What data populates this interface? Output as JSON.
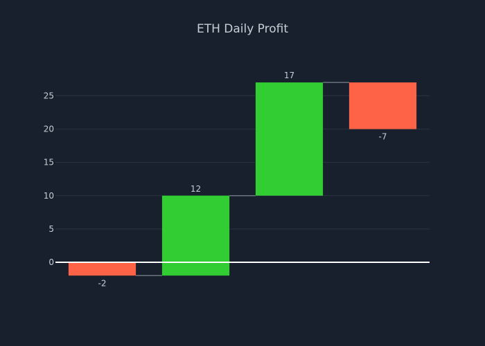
{
  "chart_data": {
    "type": "waterfall",
    "title": "ETH Daily Profit",
    "xlabel": "",
    "ylabel": "",
    "categories": [
      "",
      "",
      "",
      ""
    ],
    "values": [
      -2,
      12,
      17,
      -7
    ],
    "labels": [
      "-2",
      "12",
      "17",
      "-7"
    ],
    "ylim": [
      -5,
      30
    ],
    "yticks": [
      0,
      5,
      10,
      15,
      20,
      25
    ],
    "grid": true,
    "legend": "none",
    "colors": {
      "increase": "#32cd32",
      "decrease": "#ff6347",
      "background": "#17202c",
      "grid": "#283442",
      "zero_line": "#ffffff",
      "connector": "#6b7380",
      "text": "#c8ced6"
    }
  }
}
